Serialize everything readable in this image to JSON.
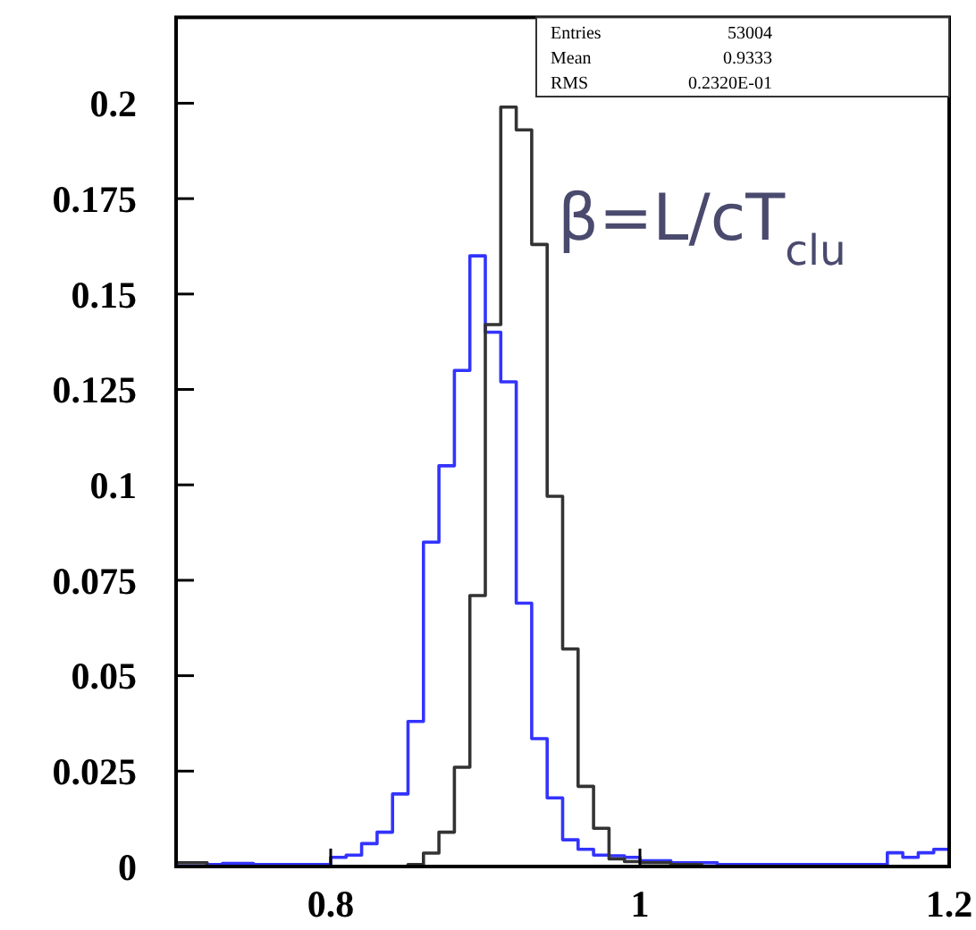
{
  "chart_data": {
    "type": "histogram",
    "bins": [
      0.7,
      0.71,
      0.72,
      0.73,
      0.74,
      0.75,
      0.76,
      0.77,
      0.78,
      0.79,
      0.8,
      0.81,
      0.82,
      0.83,
      0.84,
      0.85,
      0.86,
      0.87,
      0.88,
      0.89,
      0.9,
      0.91,
      0.92,
      0.93,
      0.94,
      0.95,
      0.96,
      0.97,
      0.98,
      0.99,
      1.0,
      1.01,
      1.02,
      1.03,
      1.04,
      1.05,
      1.06,
      1.07,
      1.08,
      1.09,
      1.1,
      1.11,
      1.12,
      1.13,
      1.14,
      1.15,
      1.16,
      1.17,
      1.18,
      1.19,
      1.2
    ],
    "series": [
      {
        "color": "#3333ff",
        "values": [
          0.001,
          0.001,
          0.0005,
          0.0008,
          0.0008,
          0.0005,
          0.0005,
          0.0005,
          0.0005,
          0.0005,
          0.0024,
          0.003,
          0.006,
          0.009,
          0.019,
          0.038,
          0.085,
          0.105,
          0.13,
          0.16,
          0.14,
          0.127,
          0.069,
          0.0335,
          0.018,
          0.007,
          0.0045,
          0.003,
          0.0028,
          0.0024,
          0.0015,
          0.0015,
          0.001,
          0.001,
          0.001,
          0.0005,
          0.0005,
          0.0005,
          0.0005,
          0.0005,
          0.0005,
          0.0005,
          0.0005,
          0.0005,
          0.0005,
          0.0005,
          0.0036,
          0.0024,
          0.0036,
          0.0045
        ]
      },
      {
        "color": "#333333",
        "values": [
          0.001,
          0.001,
          0,
          0,
          0,
          0,
          0,
          0,
          0,
          0,
          0,
          0,
          0,
          0,
          0,
          0.0005,
          0.0035,
          0.009,
          0.026,
          0.071,
          0.142,
          0.199,
          0.193,
          0.163,
          0.097,
          0.057,
          0.021,
          0.01,
          0.002,
          0.0013,
          0.001,
          0.001,
          0.0005,
          0.0005,
          0,
          0,
          0,
          0,
          0,
          0,
          0,
          0,
          0,
          0,
          0,
          0,
          0,
          0,
          0,
          0
        ]
      }
    ],
    "xlim": [
      0.7,
      1.2
    ],
    "xticks": [
      0.8,
      1,
      1.2
    ],
    "ylim": [
      0,
      0.2225
    ],
    "yticks": [
      0,
      0.025,
      0.05,
      0.075,
      0.1,
      0.125,
      0.15,
      0.175,
      0.2
    ],
    "annotations": [
      "Entries",
      "53004",
      "Mean",
      "0.9333",
      "RMS",
      "0.2320E-01",
      "β=L/cT$_{clu}$"
    ]
  }
}
